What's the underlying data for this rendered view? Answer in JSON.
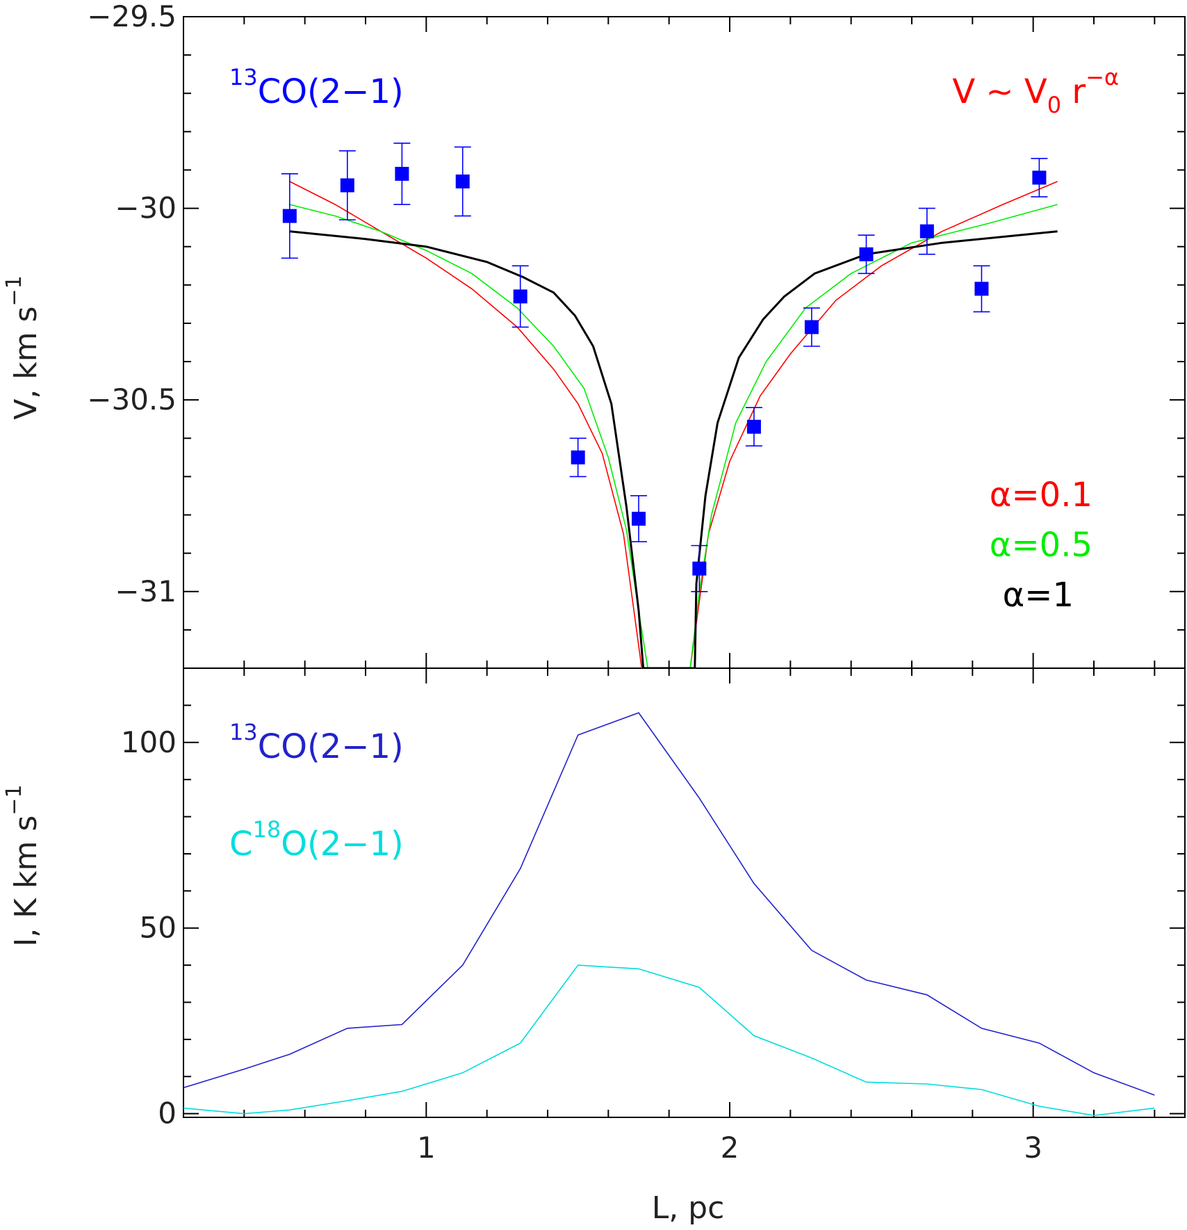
{
  "chart_data": [
    {
      "type": "scatter",
      "panel": "top",
      "xlabel": "",
      "ylabel": "V, km s",
      "ylabel_exponent": "−1",
      "xlim": [
        0.2,
        3.5
      ],
      "ylim": [
        -31.2,
        -29.5
      ],
      "y_ticks": [
        "−29.5",
        "−30",
        "−30.5",
        "−31"
      ],
      "y_tick_values": [
        -29.5,
        -30,
        -30.5,
        -31
      ],
      "annotation": {
        "sup": "13",
        "text": "CO(2−1)",
        "color": "#0000ff"
      },
      "formula": {
        "v1": "V ~ V",
        "sub": "0",
        "r": " r",
        "sup": "−α",
        "color": "#ff0000"
      },
      "data_points": {
        "color": "#0000ff",
        "x": [
          0.55,
          0.74,
          0.92,
          1.12,
          1.31,
          1.5,
          1.7,
          1.9,
          2.08,
          2.27,
          2.45,
          2.65,
          2.83,
          3.02
        ],
        "y": [
          -30.02,
          -29.94,
          -29.91,
          -29.93,
          -30.23,
          -30.65,
          -30.81,
          -30.94,
          -30.57,
          -30.31,
          -30.12,
          -30.06,
          -30.21,
          -29.92
        ],
        "err": [
          0.11,
          0.09,
          0.08,
          0.09,
          0.08,
          0.05,
          0.06,
          0.06,
          0.05,
          0.05,
          0.05,
          0.06,
          0.06,
          0.05
        ]
      },
      "series": [
        {
          "name": "α=0.1",
          "color": "#ff0000",
          "x": [
            0.55,
            0.7,
            0.85,
            1.0,
            1.15,
            1.3,
            1.42,
            1.5,
            1.58,
            1.65,
            1.71,
            1.87,
            1.93,
            2.0,
            2.1,
            2.2,
            2.35,
            2.5,
            2.7,
            2.9,
            3.08
          ],
          "y": [
            -29.93,
            -29.99,
            -30.06,
            -30.13,
            -30.21,
            -30.31,
            -30.42,
            -30.51,
            -30.64,
            -30.85,
            -31.2,
            -31.2,
            -30.85,
            -30.66,
            -30.49,
            -30.38,
            -30.24,
            -30.15,
            -30.06,
            -29.99,
            -29.93
          ]
        },
        {
          "name": "α=0.5",
          "color": "#00ee00",
          "x": [
            0.55,
            0.7,
            0.85,
            1.0,
            1.15,
            1.3,
            1.42,
            1.52,
            1.6,
            1.66,
            1.7,
            1.73,
            1.87,
            1.9,
            1.94,
            2.02,
            2.12,
            2.25,
            2.4,
            2.6,
            2.85,
            3.08
          ],
          "y": [
            -29.99,
            -30.02,
            -30.06,
            -30.11,
            -30.17,
            -30.26,
            -30.36,
            -30.47,
            -30.65,
            -30.84,
            -31.05,
            -31.2,
            -31.2,
            -31.0,
            -30.8,
            -30.56,
            -30.4,
            -30.26,
            -30.17,
            -30.09,
            -30.04,
            -29.99
          ]
        },
        {
          "name": "α=1",
          "color": "#000000",
          "x": [
            0.55,
            0.8,
            1.0,
            1.2,
            1.32,
            1.42,
            1.49,
            1.55,
            1.61,
            1.66,
            1.7,
            1.715,
            1.885,
            1.89,
            1.92,
            1.96,
            2.03,
            2.11,
            2.18,
            2.28,
            2.45,
            2.7,
            3.08
          ],
          "y": [
            -30.06,
            -30.08,
            -30.1,
            -30.14,
            -30.18,
            -30.22,
            -30.28,
            -30.36,
            -30.51,
            -30.78,
            -31.05,
            -31.2,
            -31.2,
            -30.98,
            -30.75,
            -30.56,
            -30.39,
            -30.29,
            -30.23,
            -30.17,
            -30.12,
            -30.09,
            -30.06
          ]
        }
      ]
    },
    {
      "type": "line",
      "panel": "bottom",
      "xlabel": "L, pc",
      "ylabel": "I, K km s",
      "ylabel_exponent": "−1",
      "xlim": [
        0.2,
        3.5
      ],
      "ylim": [
        -1,
        120
      ],
      "x_ticks": [
        "1",
        "2",
        "3"
      ],
      "x_tick_values": [
        1,
        2,
        3
      ],
      "y_ticks": [
        "0",
        "50",
        "100"
      ],
      "y_tick_values": [
        0,
        50,
        100
      ],
      "series": [
        {
          "name": "CO(2−1)",
          "sup": "13",
          "sup_before": true,
          "color": "#2222cc",
          "x": [
            0.2,
            0.4,
            0.55,
            0.74,
            0.92,
            1.12,
            1.31,
            1.5,
            1.7,
            1.9,
            2.08,
            2.27,
            2.45,
            2.65,
            2.83,
            3.02,
            3.2,
            3.4
          ],
          "y": [
            7,
            12,
            16,
            23,
            24,
            40,
            66,
            102,
            108,
            85,
            62,
            44,
            36,
            32,
            23,
            19,
            11,
            5
          ]
        },
        {
          "name": "O(2−1)",
          "sup": "18",
          "prefix": "C",
          "color": "#00dddd",
          "x": [
            0.2,
            0.4,
            0.55,
            0.74,
            0.92,
            1.12,
            1.31,
            1.5,
            1.7,
            1.9,
            2.08,
            2.27,
            2.45,
            2.65,
            2.83,
            3.02,
            3.2,
            3.4
          ],
          "y": [
            1.5,
            0,
            1,
            3.5,
            6,
            11,
            19,
            40,
            39,
            34,
            21,
            15,
            8.5,
            8,
            6.5,
            2,
            -0.5,
            1.5
          ]
        }
      ]
    }
  ]
}
